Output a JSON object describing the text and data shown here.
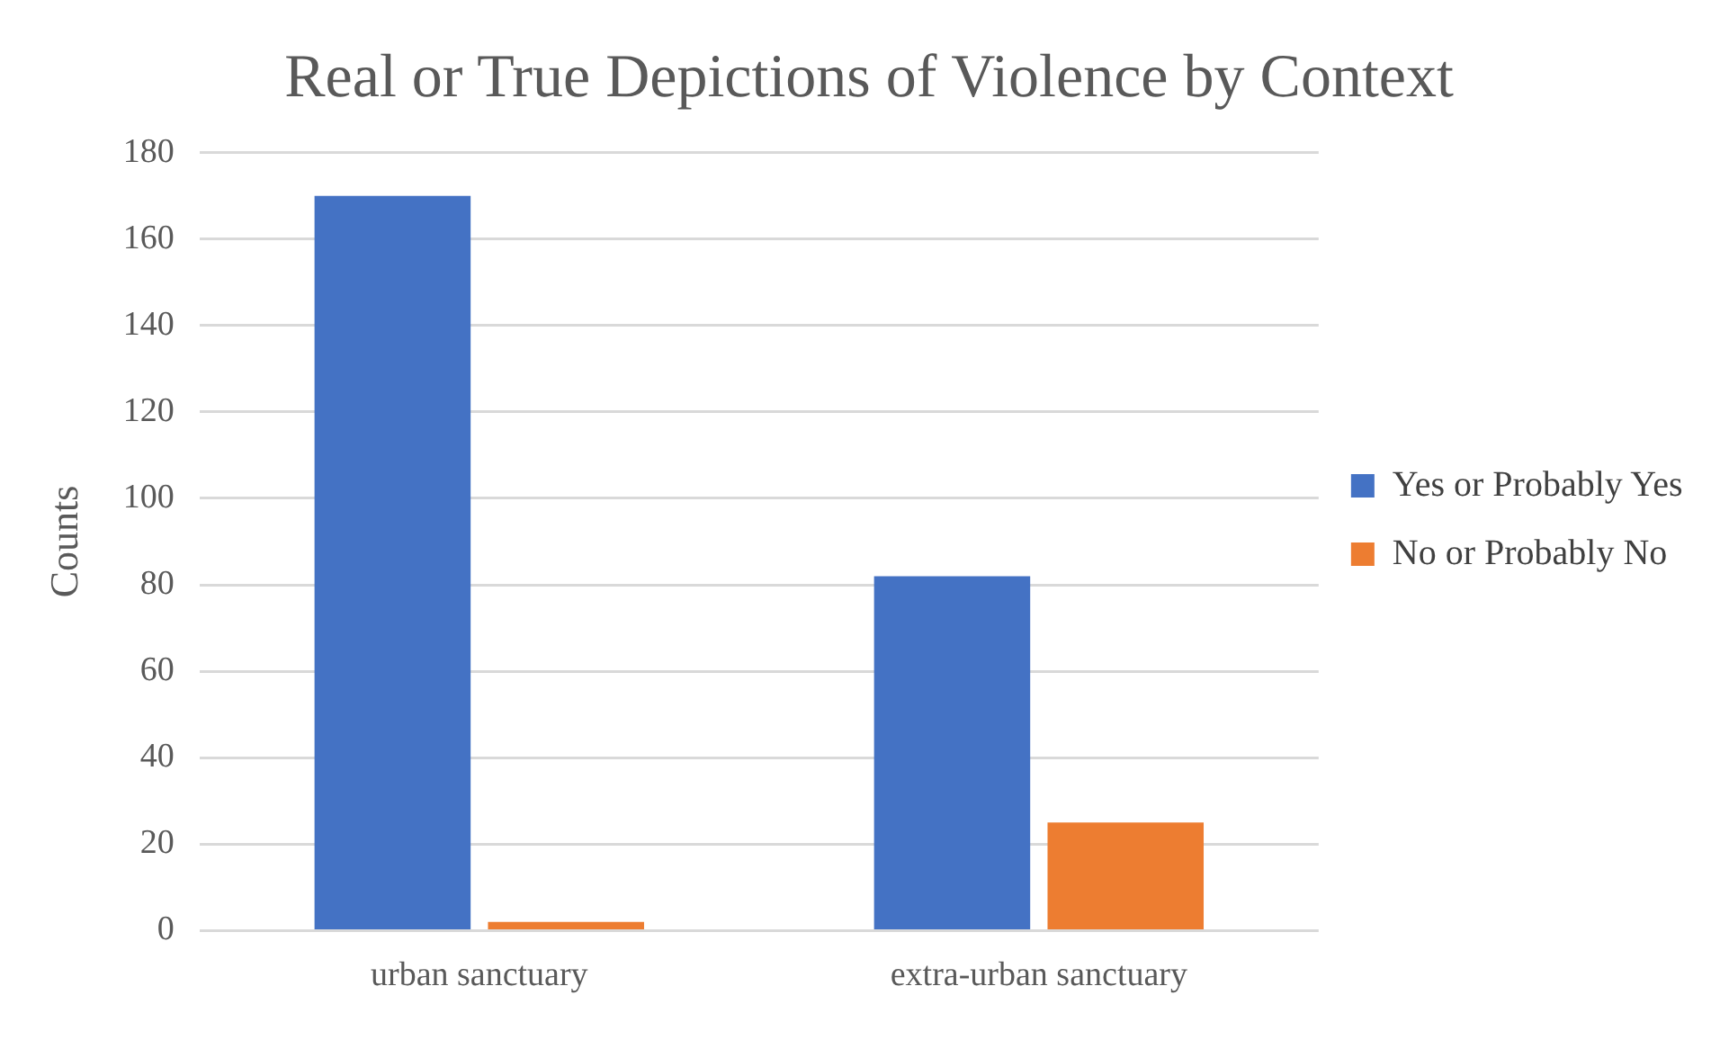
{
  "chart_data": {
    "type": "bar",
    "title": "Real or True Depictions of Violence by Context",
    "ylabel": "Counts",
    "categories": [
      "urban sanctuary",
      "extra-urban sanctuary"
    ],
    "series": [
      {
        "name": "Yes or Probably Yes",
        "color": "#4472c4",
        "values": [
          170,
          82
        ]
      },
      {
        "name": "No or Probably No",
        "color": "#ed7d31",
        "values": [
          2,
          25
        ]
      }
    ],
    "ylim": [
      0,
      180
    ],
    "yticks": [
      0,
      20,
      40,
      60,
      80,
      100,
      120,
      140,
      160,
      180
    ],
    "grid": "y",
    "legend": "right"
  }
}
